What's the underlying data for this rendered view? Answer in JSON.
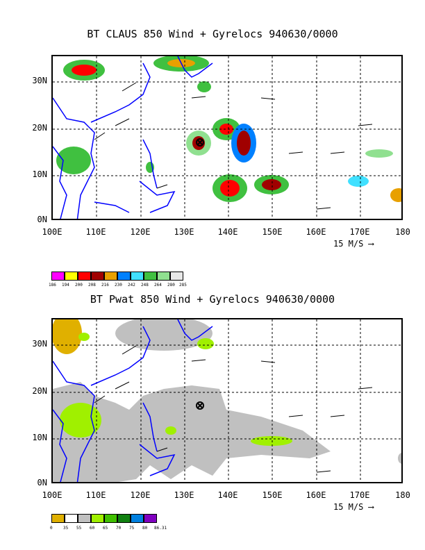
{
  "panels": [
    {
      "title": "BT CLAUS 850 Wind + Gyrelocs 940630/0000",
      "lat_labels": [
        "30N",
        "20N",
        "10N",
        "0N"
      ],
      "lon_labels": [
        "100E",
        "110E",
        "120E",
        "130E",
        "140E",
        "150E",
        "160E",
        "170E",
        "180"
      ],
      "scale_label": "15 M/S",
      "legend": {
        "colors": [
          "#ff00ff",
          "#ffff00",
          "#ff0000",
          "#a00000",
          "#e8a000",
          "#0080ff",
          "#40e0ff",
          "#40c040",
          "#90e090",
          "#e8e8e8"
        ],
        "labels": [
          "186",
          "194",
          "200",
          "208",
          "216",
          "230",
          "242",
          "248",
          "264",
          "280",
          "285"
        ]
      }
    },
    {
      "title": "BT Pwat 850 Wind + Gyrelocs 940630/0000",
      "lat_labels": [
        "30N",
        "20N",
        "10N",
        "0N"
      ],
      "lon_labels": [
        "100E",
        "110E",
        "120E",
        "130E",
        "140E",
        "150E",
        "160E",
        "170E",
        "180"
      ],
      "scale_label": "15 M/S",
      "legend": {
        "colors": [
          "#e0b000",
          "#ffffff",
          "#c0c0c0",
          "#a0f000",
          "#40c000",
          "#108010",
          "#0080e0",
          "#8000c0"
        ],
        "labels": [
          "0",
          "35",
          "55",
          "60",
          "65",
          "70",
          "75",
          "80",
          "86.31"
        ]
      }
    }
  ]
}
